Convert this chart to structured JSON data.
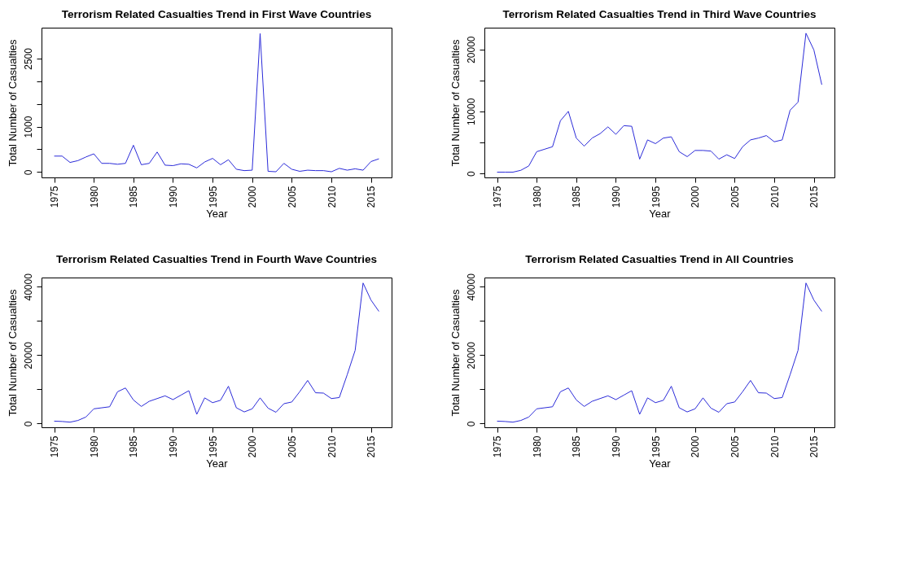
{
  "chart_data": [
    {
      "type": "line",
      "title": "Terrorism Related Casualties Trend in First Wave Countries",
      "xlabel": "Year",
      "ylabel": "Total Number of Casualties",
      "color": "#2b2bd9",
      "grid": false,
      "x": [
        1975,
        1976,
        1977,
        1978,
        1979,
        1980,
        1981,
        1982,
        1983,
        1984,
        1985,
        1986,
        1987,
        1988,
        1989,
        1990,
        1991,
        1992,
        1993,
        1994,
        1995,
        1996,
        1997,
        1998,
        1999,
        2000,
        2001,
        2002,
        2003,
        2004,
        2005,
        2006,
        2007,
        2008,
        2009,
        2010,
        2011,
        2012,
        2013,
        2014,
        2015,
        2016
      ],
      "values": [
        350,
        350,
        210,
        250,
        330,
        400,
        190,
        190,
        170,
        190,
        590,
        160,
        190,
        440,
        150,
        140,
        180,
        170,
        90,
        220,
        300,
        160,
        270,
        60,
        30,
        40,
        3050,
        15,
        5,
        190,
        60,
        15,
        40,
        30,
        30,
        5,
        80,
        40,
        70,
        40,
        230,
        290
      ],
      "xlim": [
        1973.4,
        2017.6
      ],
      "xticks": [
        1975,
        1980,
        1985,
        1990,
        1995,
        2000,
        2005,
        2010,
        2015
      ],
      "ylim": [
        -120,
        3180
      ],
      "yticks": [
        0,
        {
          "value": 500,
          "label": null
        },
        1000,
        {
          "value": 1500,
          "label": null
        },
        {
          "value": 2000,
          "label": null
        },
        2500
      ]
    },
    {
      "type": "line",
      "title": "Terrorism Related Casualties Trend in Third Wave Countries",
      "xlabel": "Year",
      "ylabel": "Total Number of Casualties",
      "color": "#2b2bd9",
      "grid": false,
      "x": [
        1975,
        1976,
        1977,
        1978,
        1979,
        1980,
        1981,
        1982,
        1983,
        1984,
        1985,
        1986,
        1987,
        1988,
        1989,
        1990,
        1991,
        1992,
        1993,
        1994,
        1995,
        1996,
        1997,
        1998,
        1999,
        2000,
        2001,
        2002,
        2003,
        2004,
        2005,
        2006,
        2007,
        2008,
        2009,
        2010,
        2011,
        2012,
        2013,
        2014,
        2015,
        2016
      ],
      "values": [
        200,
        200,
        200,
        500,
        1200,
        3500,
        3900,
        4300,
        8500,
        10000,
        5700,
        4400,
        5700,
        6400,
        7500,
        6300,
        7700,
        7600,
        2300,
        5400,
        4800,
        5700,
        5900,
        3500,
        2700,
        3700,
        3700,
        3600,
        2300,
        3000,
        2400,
        4300,
        5400,
        5700,
        6100,
        5100,
        5400,
        10200,
        11500,
        22600,
        19900,
        14300
      ],
      "xlim": [
        1973.4,
        2017.6
      ],
      "xticks": [
        1975,
        1980,
        1985,
        1990,
        1995,
        2000,
        2005,
        2010,
        2015
      ],
      "ylim": [
        -650,
        23500
      ],
      "yticks": [
        0,
        {
          "value": 5000,
          "label": null
        },
        10000,
        {
          "value": 15000,
          "label": null
        },
        20000
      ]
    },
    {
      "type": "line",
      "title": "Terrorism Related Casualties Trend in Fourth Wave Countries",
      "xlabel": "Year",
      "ylabel": "Total Number of Casualties",
      "color": "#2b2bd9",
      "grid": false,
      "x": [
        1975,
        1976,
        1977,
        1978,
        1979,
        1980,
        1981,
        1982,
        1983,
        1984,
        1985,
        1986,
        1987,
        1988,
        1989,
        1990,
        1991,
        1992,
        1993,
        1994,
        1995,
        1996,
        1997,
        1998,
        1999,
        2000,
        2001,
        2002,
        2003,
        2004,
        2005,
        2006,
        2007,
        2008,
        2009,
        2010,
        2011,
        2012,
        2013,
        2014,
        2015,
        2016
      ],
      "values": [
        700,
        600,
        400,
        900,
        1900,
        4300,
        4600,
        4900,
        9300,
        10400,
        6900,
        5000,
        6500,
        7300,
        8100,
        7000,
        8300,
        9600,
        2700,
        7500,
        6100,
        6800,
        10900,
        4600,
        3400,
        4300,
        7500,
        4500,
        3300,
        5800,
        6300,
        9300,
        12600,
        9000,
        8900,
        7300,
        7600,
        14300,
        21400,
        41100,
        36100,
        32800
      ],
      "xlim": [
        1973.4,
        2017.6
      ],
      "xticks": [
        1975,
        1980,
        1985,
        1990,
        1995,
        2000,
        2005,
        2010,
        2015
      ],
      "ylim": [
        -1100,
        42700
      ],
      "yticks": [
        0,
        {
          "value": 10000,
          "label": null
        },
        20000,
        {
          "value": 30000,
          "label": null
        },
        40000
      ]
    },
    {
      "type": "line",
      "title": "Terrorism Related Casualties Trend in All Countries",
      "xlabel": "Year",
      "ylabel": "Total Number of Casualties",
      "color": "#2b2bd9",
      "grid": false,
      "x": [
        1975,
        1976,
        1977,
        1978,
        1979,
        1980,
        1981,
        1982,
        1983,
        1984,
        1985,
        1986,
        1987,
        1988,
        1989,
        1990,
        1991,
        1992,
        1993,
        1994,
        1995,
        1996,
        1997,
        1998,
        1999,
        2000,
        2001,
        2002,
        2003,
        2004,
        2005,
        2006,
        2007,
        2008,
        2009,
        2010,
        2011,
        2012,
        2013,
        2014,
        2015,
        2016
      ],
      "values": [
        700,
        600,
        400,
        900,
        1900,
        4300,
        4600,
        4900,
        9300,
        10400,
        6900,
        5000,
        6500,
        7300,
        8100,
        7000,
        8300,
        9600,
        2700,
        7500,
        6100,
        6800,
        10900,
        4600,
        3400,
        4300,
        7500,
        4500,
        3300,
        5800,
        6300,
        9300,
        12600,
        9000,
        8900,
        7300,
        7600,
        14300,
        21400,
        41100,
        36100,
        32800
      ],
      "xlim": [
        1973.4,
        2017.6
      ],
      "xticks": [
        1975,
        1980,
        1985,
        1990,
        1995,
        2000,
        2005,
        2010,
        2015
      ],
      "ylim": [
        -1100,
        42700
      ],
      "yticks": [
        0,
        {
          "value": 10000,
          "label": null
        },
        20000,
        {
          "value": 30000,
          "label": null
        },
        40000
      ]
    }
  ]
}
